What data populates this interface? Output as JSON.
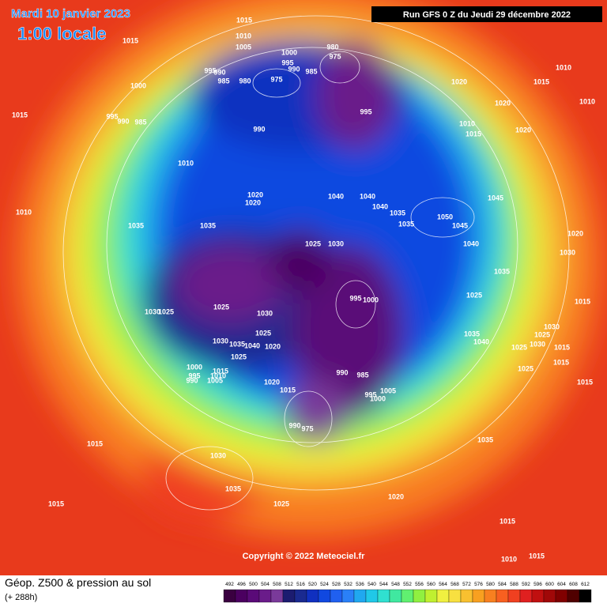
{
  "header": {
    "date": "Mardi 10 janvier 2023",
    "time": "1:00 locale",
    "run": "Run GFS 0 Z du Jeudi 29 décembre 2022"
  },
  "footer": {
    "title": "Géop. Z500 & pression au sol",
    "lead": "(+ 288h)",
    "copyright": "Copyright © 2022 Meteociel.fr"
  },
  "colorbar": {
    "labels": [
      492,
      496,
      500,
      504,
      508,
      512,
      516,
      520,
      524,
      528,
      532,
      536,
      540,
      544,
      548,
      552,
      556,
      560,
      564,
      568,
      572,
      576,
      580,
      584,
      588,
      592,
      596,
      600,
      604,
      608,
      612
    ],
    "colors": [
      "#3a0040",
      "#4b0060",
      "#5a0a78",
      "#6a1c8a",
      "#7a3a9a",
      "#1c1c70",
      "#1a2a90",
      "#1030c0",
      "#1048e0",
      "#2060f0",
      "#2a80f8",
      "#20a8f0",
      "#20c8e8",
      "#30e0d0",
      "#40e8a0",
      "#60f070",
      "#90f040",
      "#c0f030",
      "#f0f040",
      "#f8e040",
      "#f8c030",
      "#f8a020",
      "#f88020",
      "#f86020",
      "#f04020",
      "#e02020",
      "#c01010",
      "#a00808",
      "#800000",
      "#500000",
      "#000000"
    ]
  },
  "pressure_labels": [
    1015,
    1015,
    1010,
    1005,
    1000,
    980,
    975,
    995,
    990,
    985,
    995,
    990,
    985,
    980,
    975,
    1000,
    1020,
    1015,
    1010,
    1010,
    1020,
    1015,
    995,
    990,
    985,
    995,
    1010,
    1015,
    1020,
    990,
    1010,
    1040,
    1040,
    1020,
    1020,
    1040,
    1035,
    1035,
    1050,
    1045,
    1045,
    1010,
    1035,
    1035,
    1025,
    1030,
    1040,
    1020,
    1030,
    1035,
    1025,
    995,
    1000,
    1015,
    1025,
    1030,
    1025,
    1030,
    1035,
    1040,
    1030,
    1025,
    1030,
    1025,
    1015,
    1025,
    1020,
    1015,
    1025,
    1015,
    1030,
    1035,
    1040,
    1025,
    990,
    985,
    1000,
    995,
    990,
    1015,
    1010,
    1005,
    1020,
    1015,
    1005,
    995,
    1000,
    990,
    975,
    1035,
    1015,
    1030,
    1035,
    1020,
    1025,
    1015,
    1015,
    1010,
    1015
  ]
}
